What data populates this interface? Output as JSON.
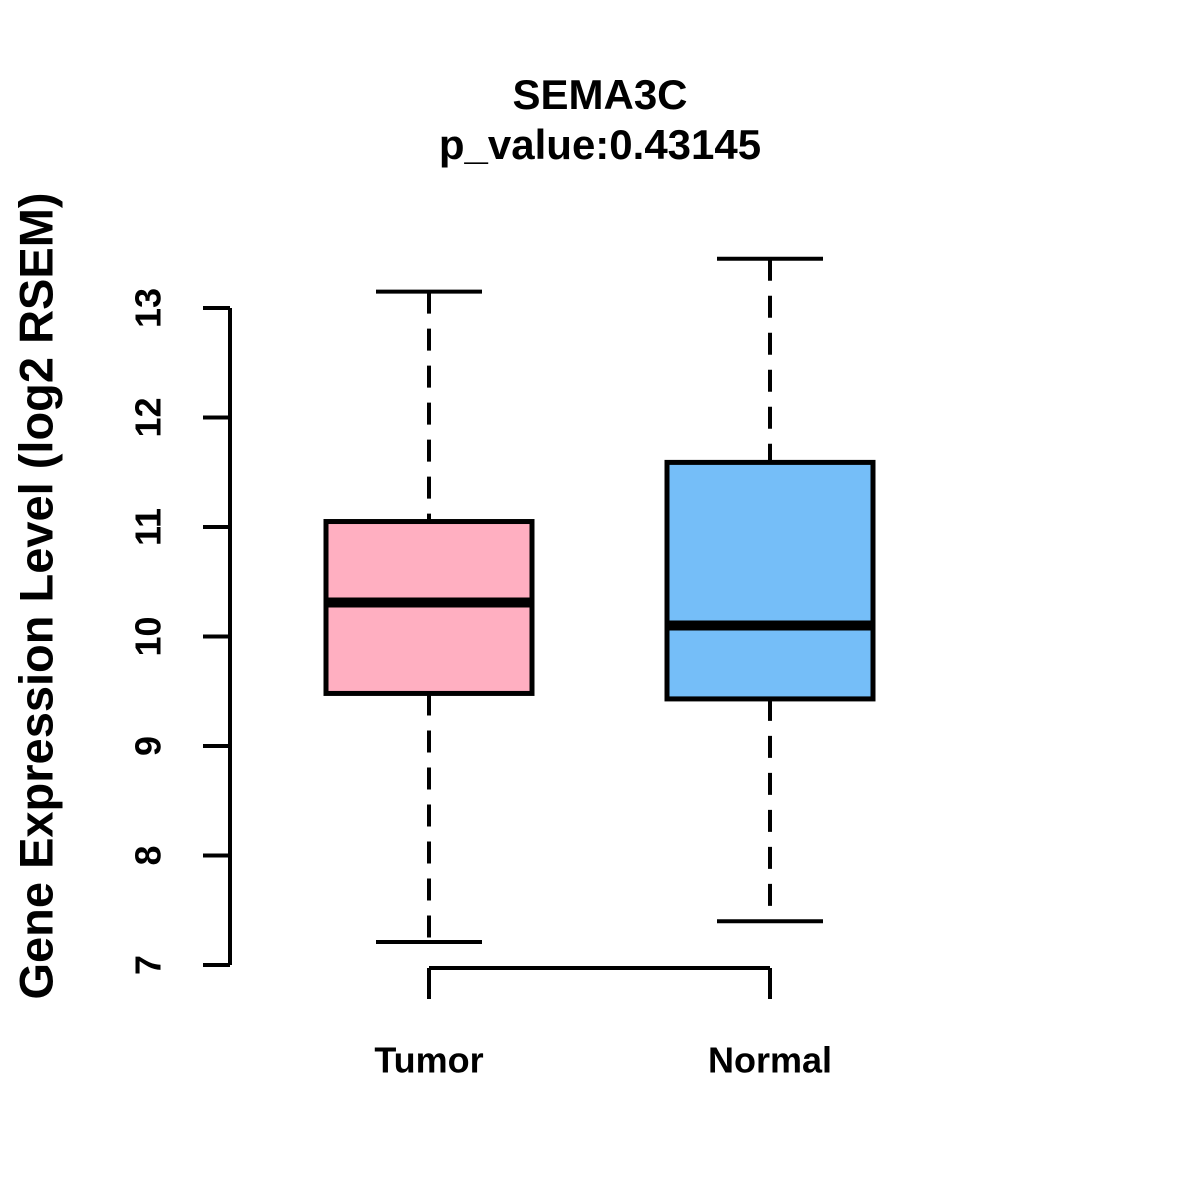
{
  "page": {
    "background": "#ffffff",
    "text_color": "#000000"
  },
  "chart_data": {
    "type": "boxplot",
    "title": "SEMA3C",
    "subtitle": "p_value:0.43145",
    "ylabel": "Gene Expression Level (log2 RSEM)",
    "xlabel": "",
    "ylim": [
      6.95,
      13.6
    ],
    "yticks": [
      7,
      8,
      9,
      10,
      11,
      12,
      13
    ],
    "grid": false,
    "legend": "none",
    "stroke_color": "#000000",
    "categories": [
      "Tumor",
      "Normal"
    ],
    "series": [
      {
        "name": "Tumor",
        "fill": "#FFAFC1",
        "whisker_low": 7.21,
        "q1": 9.48,
        "median": 10.31,
        "q3": 11.05,
        "whisker_high": 13.15
      },
      {
        "name": "Normal",
        "fill": "#75BEF8",
        "whisker_low": 7.4,
        "q1": 9.43,
        "median": 10.1,
        "q3": 11.59,
        "whisker_high": 13.45
      }
    ]
  }
}
